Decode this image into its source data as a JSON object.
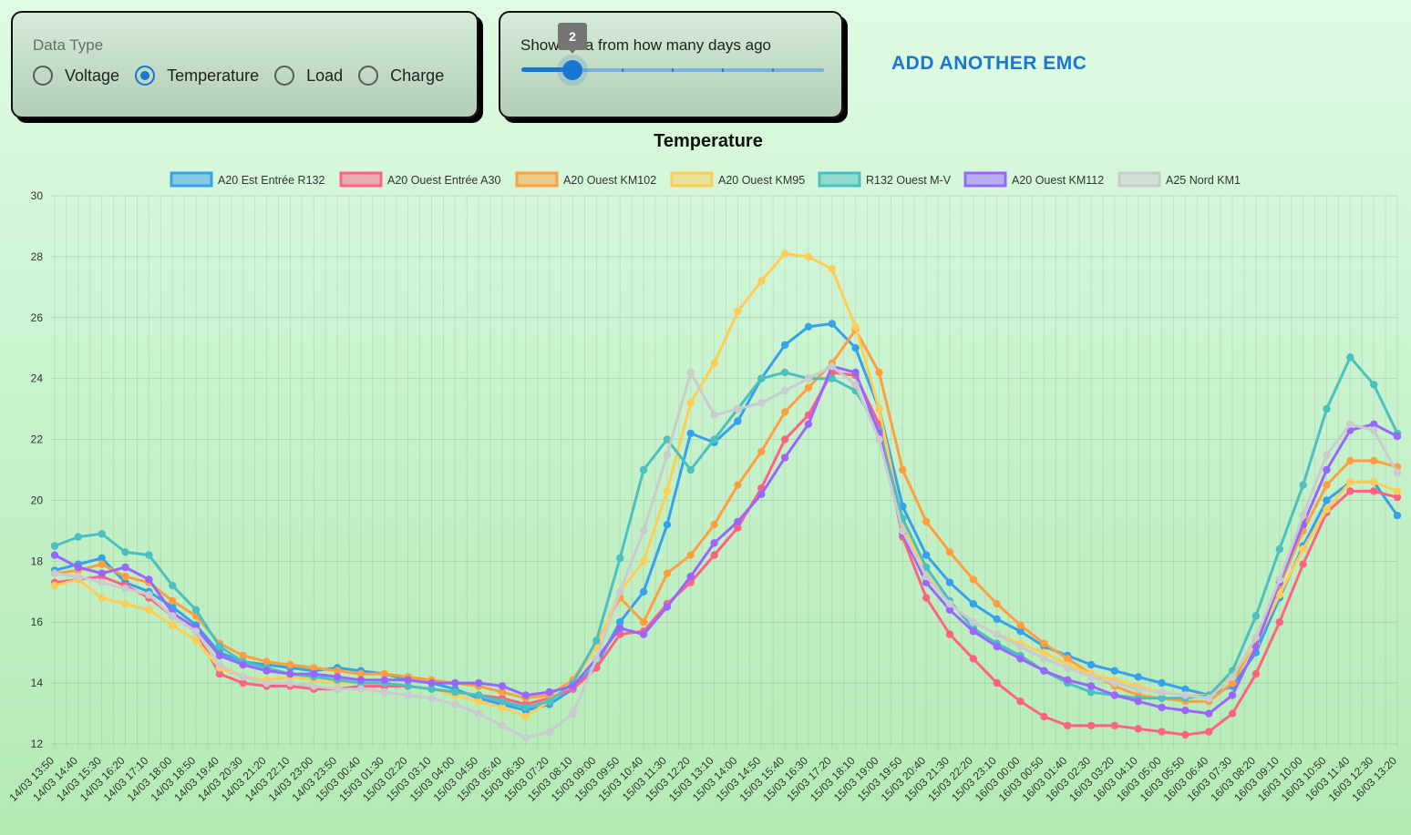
{
  "data_type_card": {
    "title": "Data Type",
    "options": [
      {
        "label": "Voltage",
        "checked": false
      },
      {
        "label": "Temperature",
        "checked": true
      },
      {
        "label": "Load",
        "checked": false
      },
      {
        "label": "Charge",
        "checked": false
      }
    ]
  },
  "days_card": {
    "label": "Show data from how many days ago",
    "value": "2",
    "value_fraction": 0.167
  },
  "add_emc_button": "ADD ANOTHER EMC",
  "colors": {
    "accent": "#1976d2"
  },
  "chart_data": {
    "type": "line",
    "title": "Temperature",
    "xlabel": "",
    "ylabel": "",
    "ylim": [
      12,
      30
    ],
    "yticks": [
      12,
      14,
      16,
      18,
      20,
      22,
      24,
      26,
      28,
      30
    ],
    "grid": true,
    "legend_position": "top",
    "x": [
      "14/03 13:50",
      "14/03 14:40",
      "14/03 15:30",
      "14/03 16:20",
      "14/03 17:10",
      "14/03 18:00",
      "14/03 18:50",
      "14/03 19:40",
      "14/03 20:30",
      "14/03 21:20",
      "14/03 22:10",
      "14/03 23:00",
      "14/03 23:50",
      "15/03 00:40",
      "15/03 01:30",
      "15/03 02:20",
      "15/03 03:10",
      "15/03 04:00",
      "15/03 04:50",
      "15/03 05:40",
      "15/03 06:30",
      "15/03 07:20",
      "15/03 08:10",
      "15/03 09:00",
      "15/03 09:50",
      "15/03 10:40",
      "15/03 11:30",
      "15/03 12:20",
      "15/03 13:10",
      "15/03 14:00",
      "15/03 14:50",
      "15/03 15:40",
      "15/03 16:30",
      "15/03 17:20",
      "15/03 18:10",
      "15/03 19:00",
      "15/03 19:50",
      "15/03 20:40",
      "15/03 21:30",
      "15/03 22:20",
      "15/03 23:10",
      "16/03 00:00",
      "16/03 00:50",
      "16/03 01:40",
      "16/03 02:30",
      "16/03 03:20",
      "16/03 04:10",
      "16/03 05:00",
      "16/03 05:50",
      "16/03 06:40",
      "16/03 07:30",
      "16/03 08:20",
      "16/03 09:10",
      "16/03 10:00",
      "16/03 10:50",
      "16/03 11:40",
      "16/03 12:30",
      "16/03 13:20"
    ],
    "series": [
      {
        "name": "A20 Est Entrée R132",
        "color": "#36a2eb",
        "values": [
          17.7,
          17.9,
          18.1,
          17.3,
          17.0,
          16.5,
          15.9,
          15.0,
          14.7,
          14.6,
          14.5,
          14.4,
          14.5,
          14.4,
          14.3,
          14.1,
          14.0,
          13.8,
          13.5,
          13.3,
          13.1,
          13.3,
          13.8,
          14.6,
          16.0,
          17.0,
          19.2,
          22.2,
          21.9,
          22.6,
          24.0,
          25.1,
          25.7,
          25.8,
          25.0,
          23.0,
          19.8,
          18.2,
          17.3,
          16.6,
          16.1,
          15.7,
          15.2,
          14.9,
          14.6,
          14.4,
          14.2,
          14.0,
          13.8,
          13.6,
          13.9,
          15.0,
          16.8,
          18.5,
          20.0,
          20.6,
          20.6,
          19.5
        ]
      },
      {
        "name": "A20 Ouest Entrée A30",
        "color": "#ff6384",
        "values": [
          17.3,
          17.4,
          17.5,
          17.2,
          16.8,
          16.2,
          15.7,
          14.3,
          14.0,
          13.9,
          13.9,
          13.8,
          13.8,
          13.9,
          13.9,
          13.9,
          13.8,
          13.7,
          13.6,
          13.5,
          13.3,
          13.5,
          13.8,
          14.5,
          15.6,
          15.7,
          16.6,
          17.3,
          18.2,
          19.1,
          20.4,
          22.0,
          22.8,
          24.2,
          24.1,
          22.5,
          18.8,
          16.8,
          15.6,
          14.8,
          14.0,
          13.4,
          12.9,
          12.6,
          12.6,
          12.6,
          12.5,
          12.4,
          12.3,
          12.4,
          13.0,
          14.3,
          16.0,
          17.9,
          19.6,
          20.3,
          20.3,
          20.1
        ]
      },
      {
        "name": "A20 Ouest KM102",
        "color": "#ff9f40",
        "values": [
          17.6,
          17.7,
          17.9,
          17.5,
          17.3,
          16.7,
          16.2,
          15.3,
          14.9,
          14.7,
          14.6,
          14.5,
          14.4,
          14.3,
          14.3,
          14.2,
          14.1,
          14.0,
          13.9,
          13.7,
          13.5,
          13.6,
          14.1,
          15.3,
          16.8,
          16.0,
          17.6,
          18.2,
          19.2,
          20.5,
          21.6,
          22.9,
          23.7,
          24.5,
          25.6,
          24.2,
          21.0,
          19.3,
          18.3,
          17.4,
          16.6,
          15.9,
          15.3,
          14.8,
          14.3,
          13.9,
          13.6,
          13.5,
          13.4,
          13.4,
          14.0,
          15.4,
          17.2,
          19.0,
          20.5,
          21.3,
          21.3,
          21.1
        ]
      },
      {
        "name": "A20 Ouest KM95",
        "color": "#ffcd56",
        "values": [
          17.2,
          17.4,
          16.8,
          16.6,
          16.4,
          15.9,
          15.4,
          14.5,
          14.2,
          14.1,
          14.2,
          14.1,
          14.0,
          14.0,
          14.0,
          13.9,
          13.8,
          13.6,
          13.4,
          13.2,
          12.9,
          13.4,
          14.0,
          15.2,
          17.0,
          18.0,
          20.3,
          23.2,
          24.5,
          26.2,
          27.2,
          28.1,
          28.0,
          27.6,
          25.7,
          23.0,
          19.2,
          17.6,
          16.6,
          16.0,
          15.6,
          15.3,
          15.0,
          14.6,
          14.3,
          14.1,
          13.9,
          13.7,
          13.6,
          13.6,
          14.3,
          15.3,
          16.9,
          18.4,
          19.7,
          20.6,
          20.6,
          20.3
        ]
      },
      {
        "name": "R132 Ouest M-V",
        "color": "#4bc0c0",
        "values": [
          18.5,
          18.8,
          18.9,
          18.3,
          18.2,
          17.2,
          16.4,
          15.2,
          14.7,
          14.5,
          14.3,
          14.2,
          14.1,
          14.0,
          14.0,
          13.9,
          13.8,
          13.7,
          13.6,
          13.4,
          13.2,
          13.4,
          14.0,
          15.4,
          18.1,
          21.0,
          22.0,
          21.0,
          22.0,
          23.0,
          24.0,
          24.2,
          24.0,
          24.0,
          23.6,
          22.3,
          19.4,
          17.8,
          16.7,
          15.8,
          15.3,
          14.9,
          14.4,
          14.0,
          13.7,
          13.6,
          13.5,
          13.5,
          13.5,
          13.6,
          14.4,
          16.2,
          18.4,
          20.5,
          23.0,
          24.7,
          23.8,
          22.2
        ]
      },
      {
        "name": "A20 Ouest KM112",
        "color": "#9966ff",
        "values": [
          18.2,
          17.8,
          17.6,
          17.8,
          17.4,
          16.3,
          15.8,
          14.9,
          14.6,
          14.4,
          14.3,
          14.3,
          14.2,
          14.1,
          14.1,
          14.1,
          14.0,
          14.0,
          14.0,
          13.9,
          13.6,
          13.7,
          13.9,
          14.8,
          15.8,
          15.6,
          16.5,
          17.5,
          18.6,
          19.3,
          20.2,
          21.4,
          22.5,
          24.4,
          24.2,
          22.2,
          18.9,
          17.3,
          16.4,
          15.7,
          15.2,
          14.8,
          14.4,
          14.1,
          13.9,
          13.6,
          13.4,
          13.2,
          13.1,
          13.0,
          13.6,
          15.2,
          17.3,
          19.2,
          21.0,
          22.3,
          22.5,
          22.1
        ]
      },
      {
        "name": "A25 Nord KM1",
        "color": "#c9cbcf",
        "values": [
          17.6,
          17.5,
          17.3,
          17.1,
          16.9,
          16.2,
          15.7,
          14.6,
          14.2,
          14.0,
          14.0,
          13.9,
          13.8,
          13.8,
          13.7,
          13.6,
          13.5,
          13.3,
          13.0,
          12.6,
          12.2,
          12.4,
          13.0,
          14.8,
          17.0,
          19.0,
          21.5,
          24.2,
          22.8,
          23.0,
          23.2,
          23.6,
          24.0,
          24.4,
          23.8,
          22.0,
          19.0,
          17.5,
          16.6,
          16.0,
          15.6,
          15.2,
          14.8,
          14.5,
          14.2,
          14.0,
          13.8,
          13.7,
          13.6,
          13.5,
          14.2,
          15.5,
          17.4,
          19.5,
          21.5,
          22.5,
          22.3,
          20.9
        ]
      }
    ]
  }
}
